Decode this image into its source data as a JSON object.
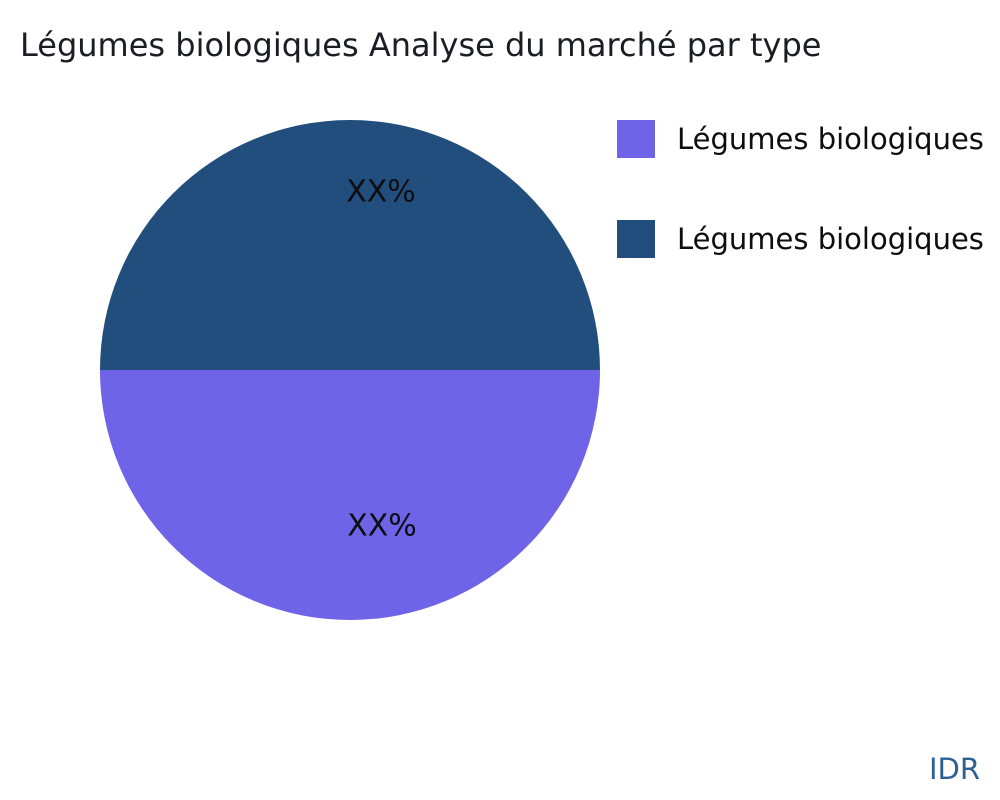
{
  "title": "Légumes biologiques Analyse du marché par type",
  "footer": {
    "brand": "IDR"
  },
  "chart_data": {
    "type": "pie",
    "title": "Légumes biologiques Analyse du marché par type",
    "labels": [
      "Légumes biologiques",
      "Légumes biologiques"
    ],
    "values": [
      50,
      50
    ],
    "value_labels": [
      "XX%",
      "XX%"
    ],
    "colors": [
      "#6F63E8",
      "#214E7C"
    ],
    "legend_position": "right",
    "slices": [
      {
        "label": "Légumes biologiques",
        "value": 50,
        "value_label": "XX%",
        "color": "#6F63E8",
        "half": "bottom"
      },
      {
        "label": "Légumes biologiques",
        "value": 50,
        "value_label": "XX%",
        "color": "#214E7C",
        "half": "top"
      }
    ]
  },
  "legend": {
    "items": [
      {
        "label": "Légumes biologiques",
        "color": "#6F63E8"
      },
      {
        "label": "Légumes biologiques",
        "color": "#214E7C"
      }
    ]
  }
}
